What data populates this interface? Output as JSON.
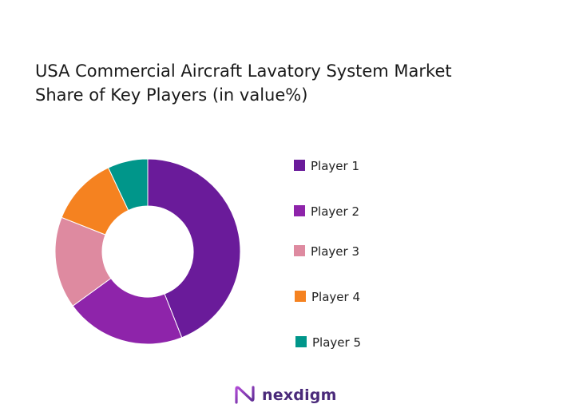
{
  "chart_data": {
    "type": "pie",
    "variant": "donut",
    "title_lines": [
      "USA Commercial Aircraft Lavatory System Market",
      "Share of Key Players (in value%)"
    ],
    "categories": [
      "Player 1",
      "Player 2",
      "Player 3",
      "Player 4",
      "Player 5"
    ],
    "values": [
      44,
      21,
      16,
      12,
      7
    ],
    "colors": [
      "#6a1b9a",
      "#8e24aa",
      "#de8aa0",
      "#f58220",
      "#00968a"
    ],
    "legend_position": "right"
  },
  "brand": {
    "name": "nexdigm",
    "logo_icon": "nexdigm-logo-icon"
  }
}
